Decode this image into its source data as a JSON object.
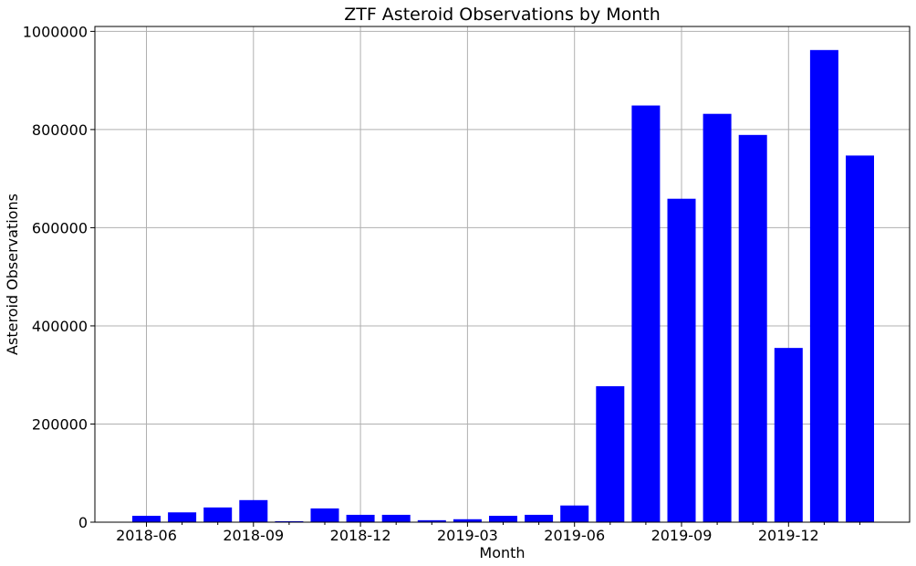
{
  "chart_data": {
    "type": "bar",
    "title": "ZTF Asteroid Observations by Month",
    "xlabel": "Month",
    "ylabel": "Asteroid Observations",
    "categories": [
      "2018-06",
      "2018-07",
      "2018-08",
      "2018-09",
      "2018-10",
      "2018-11",
      "2018-12",
      "2019-01",
      "2019-02",
      "2019-03",
      "2019-04",
      "2019-05",
      "2019-06",
      "2019-07",
      "2019-08",
      "2019-09",
      "2019-10",
      "2019-11",
      "2019-12",
      "2020-01",
      "2020-02"
    ],
    "values": [
      13000,
      20000,
      30000,
      45000,
      2000,
      28000,
      15000,
      15000,
      4000,
      6000,
      13000,
      15000,
      34000,
      277000,
      849000,
      659000,
      832000,
      789000,
      355000,
      962000,
      747000
    ],
    "ylim": [
      0,
      1010000
    ],
    "yticks": [
      0,
      200000,
      400000,
      600000,
      800000,
      1000000
    ],
    "ytick_labels": [
      "0",
      "200000",
      "400000",
      "600000",
      "800000",
      "1000000"
    ],
    "xtick_labels": [
      "2018-06",
      "2018-09",
      "2018-12",
      "2019-03",
      "2019-06",
      "2019-09",
      "2019-12"
    ],
    "grid": true,
    "bar_color": "#0000ff"
  }
}
